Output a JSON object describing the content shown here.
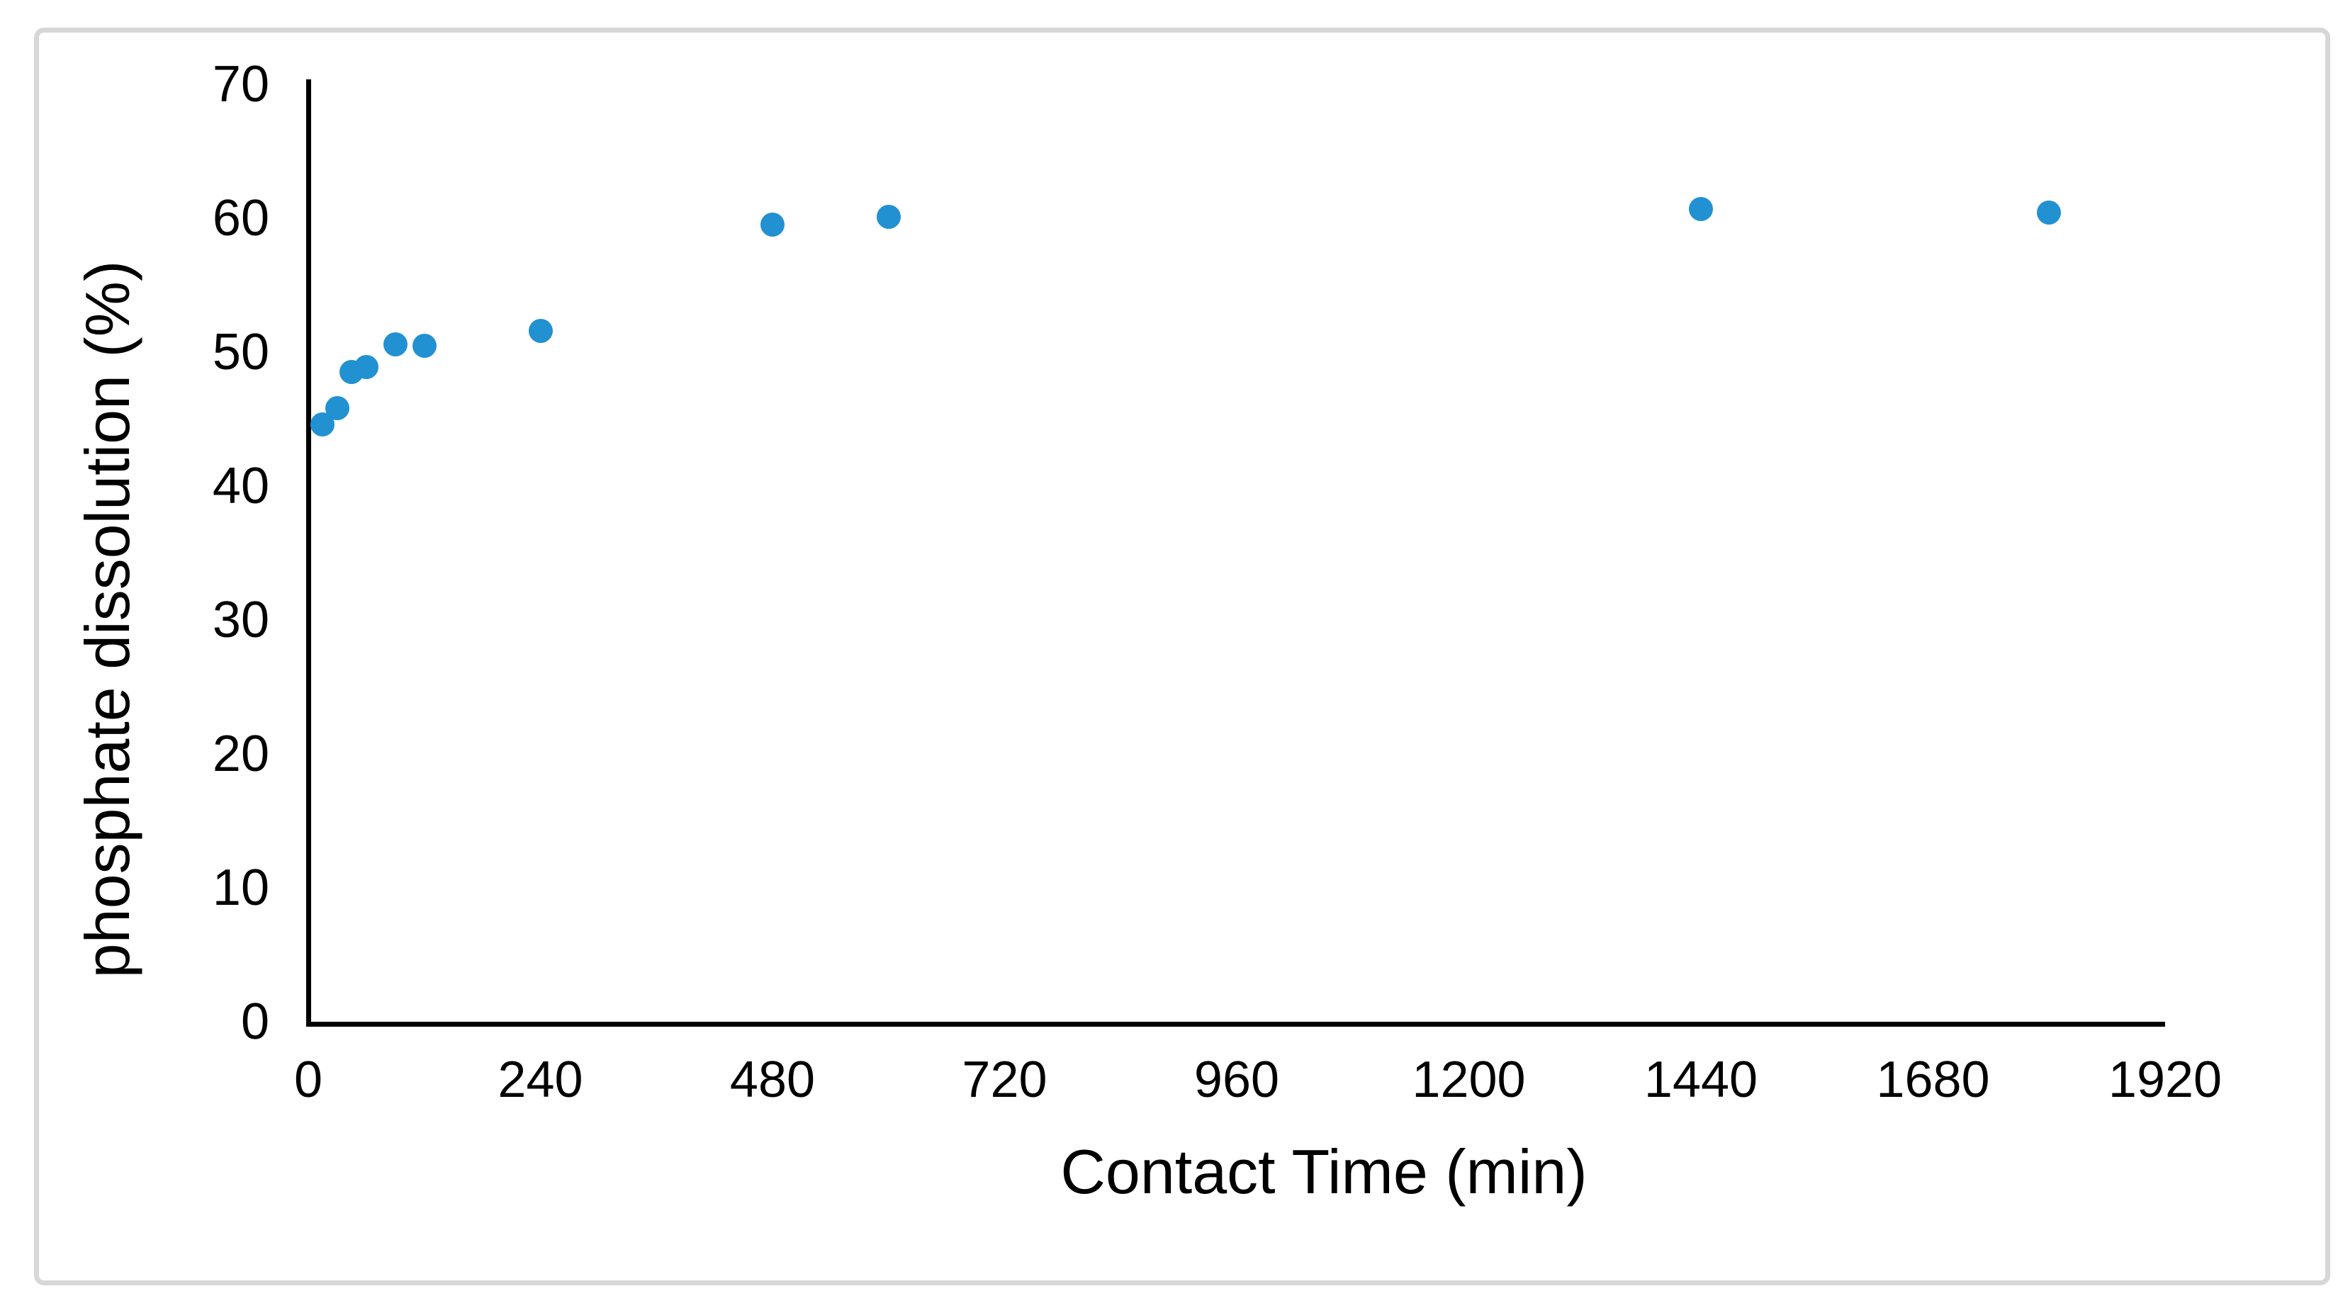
{
  "figure": {
    "background_color": "#ffffff",
    "border_color": "#d7d7d7",
    "axis_color": "#000000"
  },
  "chart_data": {
    "type": "scatter",
    "title": "",
    "xlabel": "Contact Time (min)",
    "ylabel": "phosphate dissolution (%)",
    "xlim": [
      0,
      1920
    ],
    "ylim": [
      0,
      70
    ],
    "x_ticks": [
      0,
      240,
      480,
      720,
      960,
      1200,
      1440,
      1680,
      1920
    ],
    "y_ticks": [
      0,
      10,
      20,
      30,
      40,
      50,
      60,
      70
    ],
    "grid": false,
    "legend_position": "none",
    "marker_color": "#2191d2",
    "marker_radius_px": 17,
    "series": [
      {
        "name": "phosphate dissolution",
        "points": [
          {
            "x": 15,
            "y": 44.6
          },
          {
            "x": 30,
            "y": 45.8
          },
          {
            "x": 45,
            "y": 48.5
          },
          {
            "x": 60,
            "y": 48.9
          },
          {
            "x": 90,
            "y": 50.6
          },
          {
            "x": 120,
            "y": 50.5
          },
          {
            "x": 240,
            "y": 51.6
          },
          {
            "x": 480,
            "y": 59.5
          },
          {
            "x": 600,
            "y": 60.1
          },
          {
            "x": 1440,
            "y": 60.7
          },
          {
            "x": 1800,
            "y": 60.4
          }
        ]
      }
    ]
  }
}
